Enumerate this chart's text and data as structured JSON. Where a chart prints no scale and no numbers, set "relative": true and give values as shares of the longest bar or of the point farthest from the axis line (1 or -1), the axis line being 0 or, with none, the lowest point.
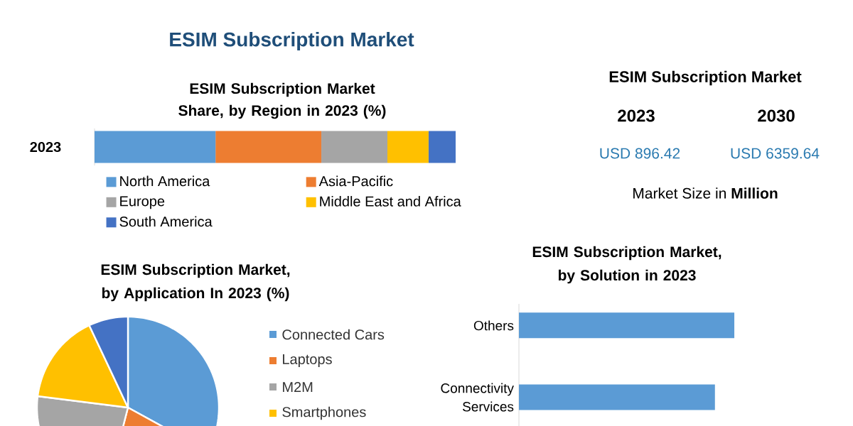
{
  "chart_data": [
    {
      "type": "other",
      "title": "ESIM Subscription Market"
    },
    {
      "type": "bar",
      "orientation": "horizontal",
      "stacked": true,
      "relative": true,
      "title": "ESIM Subscription Market Share, by Region in 2023 (%)",
      "categories": [
        "2023"
      ],
      "legend": "bottom",
      "series": [
        {
          "name": "North America",
          "color": "#5b9bd5",
          "values": [
            0.335
          ]
        },
        {
          "name": "Asia-Pacific",
          "color": "#ed7d31",
          "values": [
            0.293
          ]
        },
        {
          "name": "Europe",
          "color": "#a5a5a5",
          "values": [
            0.183
          ]
        },
        {
          "name": "Middle East and Africa",
          "color": "#ffc000",
          "values": [
            0.114
          ]
        },
        {
          "name": "South America",
          "color": "#4472c4",
          "values": [
            0.075
          ]
        }
      ]
    },
    {
      "type": "other",
      "title": "ESIM Subscription Market",
      "annotations": [
        "2023",
        "2030",
        "USD 896.42",
        "USD 6359.64",
        "Market Size in **Million**"
      ]
    },
    {
      "type": "pie",
      "title": "ESIM Subscription Market, by Application In 2023 (%)",
      "categories": [
        "Connected Cars",
        "Laptops",
        "M2M",
        "Smartphones",
        null
      ],
      "values": [
        33,
        21,
        23,
        16,
        7
      ],
      "colors": [
        "#5b9bd5",
        "#ed7d31",
        "#a5a5a5",
        "#ffc000",
        "#4472c4"
      ],
      "legend": "right"
    },
    {
      "type": "bar",
      "orientation": "horizontal",
      "relative": true,
      "title": "ESIM Subscription Market, by Solution in 2023",
      "categories": [
        "Others",
        "Connectivity Services"
      ],
      "values": [
        1,
        0.91
      ],
      "color": "#5b9bd5"
    }
  ]
}
